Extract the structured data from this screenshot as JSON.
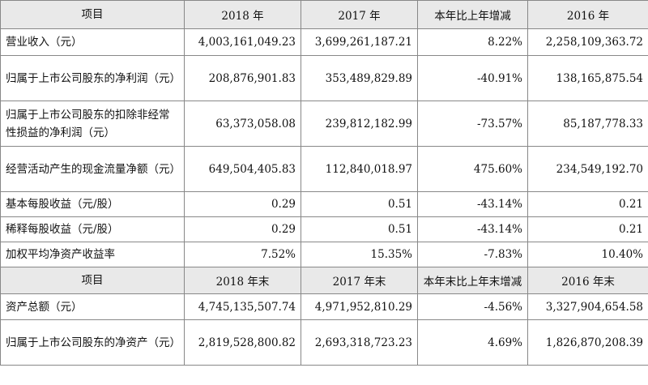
{
  "header1": [
    "项目",
    "2018 年",
    "2017 年",
    "本年比上年增减",
    "2016 年"
  ],
  "rows1": [
    {
      "label": "营业收入（元）",
      "v2018": "4,003,161,049.23",
      "v2017": "3,699,261,187.21",
      "change": "8.22%",
      "v2016": "2,258,109,363.72"
    },
    {
      "label": "归属于上市公司股东的净利润（元）",
      "v2018": "208,876,901.83",
      "v2017": "353,489,829.89",
      "change": "-40.91%",
      "v2016": "138,165,875.54"
    },
    {
      "label": "归属于上市公司股东的扣除非经常性损益的净利润（元）",
      "v2018": "63,373,058.08",
      "v2017": "239,812,182.99",
      "change": "-73.57%",
      "v2016": "85,187,778.33"
    },
    {
      "label": "经营活动产生的现金流量净额（元）",
      "v2018": "649,504,405.83",
      "v2017": "112,840,018.97",
      "change": "475.60%",
      "v2016": "234,549,192.70"
    },
    {
      "label": "基本每股收益（元/股）",
      "v2018": "0.29",
      "v2017": "0.51",
      "change": "-43.14%",
      "v2016": "0.21"
    },
    {
      "label": "稀释每股收益（元/股）",
      "v2018": "0.29",
      "v2017": "0.51",
      "change": "-43.14%",
      "v2016": "0.21"
    },
    {
      "label": "加权平均净资产收益率",
      "v2018": "7.52%",
      "v2017": "15.35%",
      "change": "-7.83%",
      "v2016": "10.40%"
    }
  ],
  "header2": [
    "项目",
    "2018 年末",
    "2017 年末",
    "本年末比上年末增减",
    "2016 年末"
  ],
  "rows2": [
    {
      "label": "资产总额（元）",
      "v2018": "4,745,135,507.74",
      "v2017": "4,971,952,810.29",
      "change": "-4.56%",
      "v2016": "3,327,904,654.58"
    },
    {
      "label": "归属于上市公司股东的净资产（元）",
      "v2018": "2,819,528,800.82",
      "v2017": "2,693,318,723.23",
      "change": "4.69%",
      "v2016": "1,826,870,208.39"
    }
  ]
}
